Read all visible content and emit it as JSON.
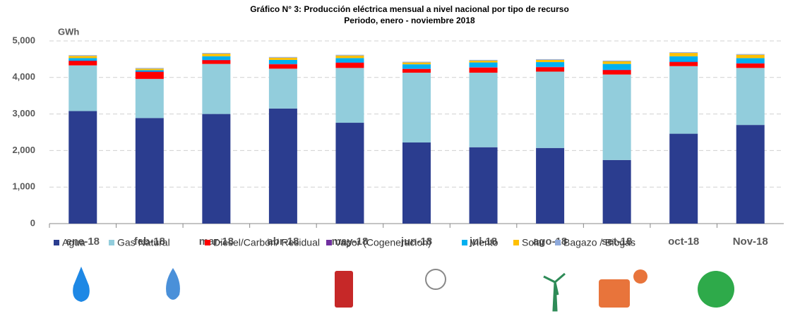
{
  "chart_data": {
    "type": "stacked_bar",
    "title": "Gráfico N° 3: Producción eléctrica mensual a nivel nacional por tipo de recurso",
    "subtitle": "Periodo, enero  - noviembre 2018",
    "y_label": "GWh",
    "categories": [
      "ene-18",
      "feb-18",
      "mar-18",
      "abr-18",
      "may-18",
      "jun-18",
      "jul-18",
      "ago-18",
      "set-18",
      "oct-18",
      "Nov-18"
    ],
    "series": [
      {
        "name": "Agua",
        "color": "#2b3d8f",
        "values": [
          3080,
          2890,
          3000,
          3150,
          2760,
          2220,
          2090,
          2070,
          1740,
          2460,
          2700
        ]
      },
      {
        "name": "Gas Natural",
        "color": "#92cddc",
        "values": [
          1250,
          1070,
          1370,
          1090,
          1500,
          1910,
          2040,
          2090,
          2340,
          1850,
          1560
        ]
      },
      {
        "name": "Diesel/Carbón/ Residual",
        "color": "#ff0000",
        "values": [
          120,
          190,
          100,
          120,
          140,
          100,
          140,
          120,
          120,
          110,
          120
        ]
      },
      {
        "name": "Vapor (Cogeneracion)",
        "color": "#7030a0",
        "values": [
          10,
          10,
          10,
          10,
          10,
          10,
          10,
          10,
          10,
          10,
          10
        ]
      },
      {
        "name": "Viento",
        "color": "#00b0f0",
        "values": [
          70,
          40,
          100,
          110,
          120,
          120,
          130,
          130,
          160,
          150,
          140
        ]
      },
      {
        "name": "Solar",
        "color": "#ffc000",
        "values": [
          60,
          40,
          70,
          60,
          70,
          50,
          50,
          60,
          70,
          90,
          90
        ]
      },
      {
        "name": "Bagazo / Biogás",
        "color": "#8ea9db",
        "values": [
          20,
          20,
          20,
          20,
          20,
          20,
          20,
          20,
          20,
          20,
          20
        ]
      }
    ],
    "ylim": [
      0,
      5000
    ],
    "yticks": [
      0,
      {
        "value": 1000,
        "label": "1,000"
      },
      {
        "value": 2000,
        "label": "2,000"
      },
      {
        "value": 3000,
        "label": "3,000"
      },
      {
        "value": 4000,
        "label": "4,000"
      },
      {
        "value": 5000,
        "label": "5,000"
      }
    ],
    "grid": true
  }
}
